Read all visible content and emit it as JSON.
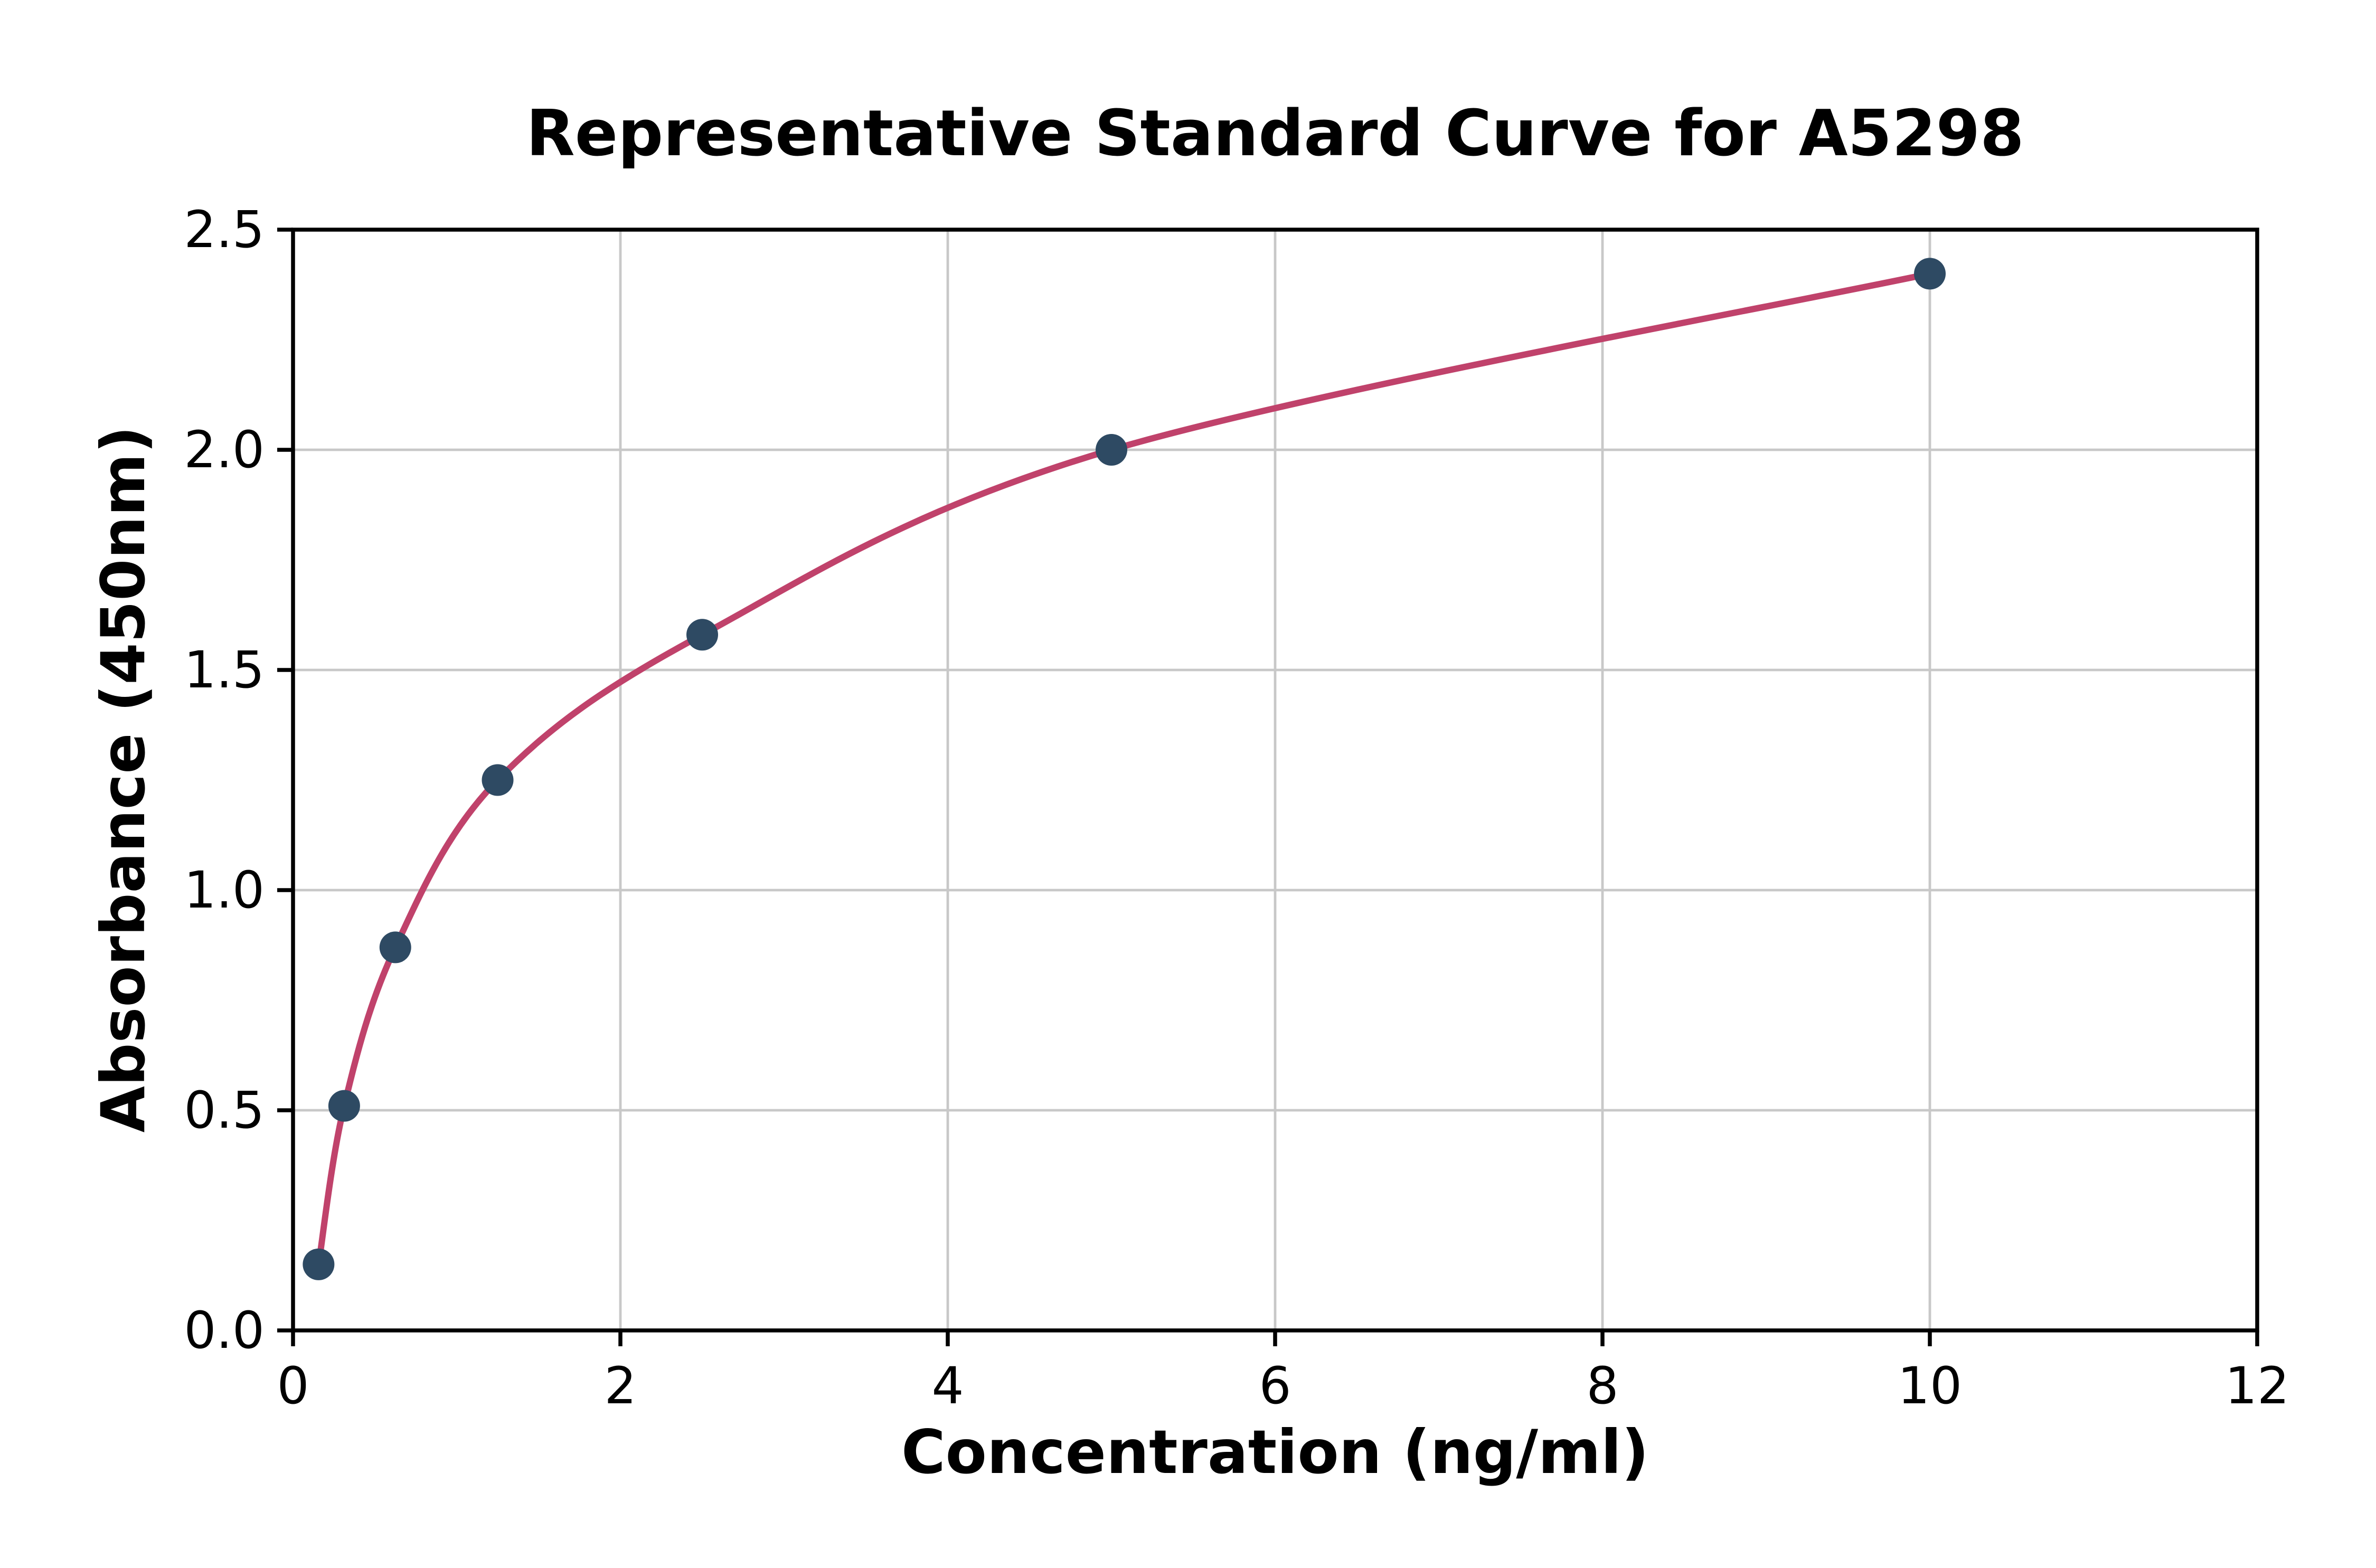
{
  "chart_data": {
    "type": "scatter",
    "title": "Representative Standard Curve for A5298",
    "xlabel": "Concentration (ng/ml)",
    "ylabel": "Absorbance (450nm)",
    "x": [
      0.156,
      0.3125,
      0.625,
      1.25,
      2.5,
      5,
      10
    ],
    "y": [
      0.15,
      0.51,
      0.87,
      1.25,
      1.58,
      2.0,
      2.4
    ],
    "curve": "smooth monotonic fit through data points, from first to last point",
    "xlim": [
      0,
      12
    ],
    "ylim": [
      0,
      2.5
    ],
    "xticks": [
      {
        "v": 0,
        "label": "0"
      },
      {
        "v": 2,
        "label": "2"
      },
      {
        "v": 4,
        "label": "4"
      },
      {
        "v": 6,
        "label": "6"
      },
      {
        "v": 8,
        "label": "8"
      },
      {
        "v": 10,
        "label": "10"
      },
      {
        "v": 12,
        "label": "12"
      }
    ],
    "yticks": [
      {
        "v": 0.0,
        "label": "0.0"
      },
      {
        "v": 0.5,
        "label": "0.5"
      },
      {
        "v": 1.0,
        "label": "1.0"
      },
      {
        "v": 1.5,
        "label": "1.5"
      },
      {
        "v": 2.0,
        "label": "2.0"
      },
      {
        "v": 2.5,
        "label": "2.5"
      }
    ],
    "grid": true,
    "legend": false,
    "colors": {
      "line": "#c0426b",
      "marker": "#2e4a63",
      "grid": "#c8c8c8",
      "spine": "#000000",
      "background": "#ffffff"
    }
  }
}
